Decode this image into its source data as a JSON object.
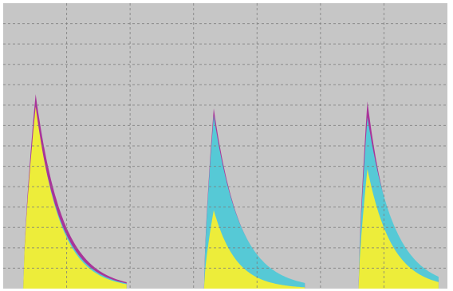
{
  "chart_data": {
    "type": "area",
    "title": "",
    "xlabel": "",
    "ylabel": "",
    "grid": true,
    "grid_divisions": {
      "x": 7,
      "y": 14
    },
    "xlim": [
      0,
      10
    ],
    "ylim": [
      0,
      8
    ],
    "colors": {
      "background": "#c6c6c6",
      "grid": "#7d7d7d",
      "border": "#ffffff",
      "magenta": "#a9359a",
      "cyan": "#56c9d6",
      "yellow": "#eded3a"
    },
    "pulses": [
      {
        "t0": 0.45,
        "rise": 0.28,
        "cut": 2.05,
        "series": [
          {
            "color_key": "magenta",
            "peak": 5.45,
            "decay": 0.6
          },
          {
            "color_key": "cyan",
            "peak": 5.0,
            "decay": 0.58
          },
          {
            "color_key": "yellow",
            "peak": 5.1,
            "decay": 0.55
          }
        ]
      },
      {
        "t0": 4.52,
        "rise": 0.22,
        "cut": 2.05,
        "series": [
          {
            "color_key": "magenta",
            "peak": 5.05,
            "decay": 0.58
          },
          {
            "color_key": "cyan",
            "peak": 4.85,
            "decay": 0.6
          },
          {
            "color_key": "yellow",
            "peak": 2.2,
            "decay": 0.5
          }
        ]
      },
      {
        "t0": 8.0,
        "rise": 0.2,
        "cut": 1.6,
        "series": [
          {
            "color_key": "magenta",
            "peak": 5.25,
            "decay": 0.52
          },
          {
            "color_key": "cyan",
            "peak": 4.8,
            "decay": 0.6
          },
          {
            "color_key": "yellow",
            "peak": 3.35,
            "decay": 0.55
          }
        ]
      }
    ]
  }
}
